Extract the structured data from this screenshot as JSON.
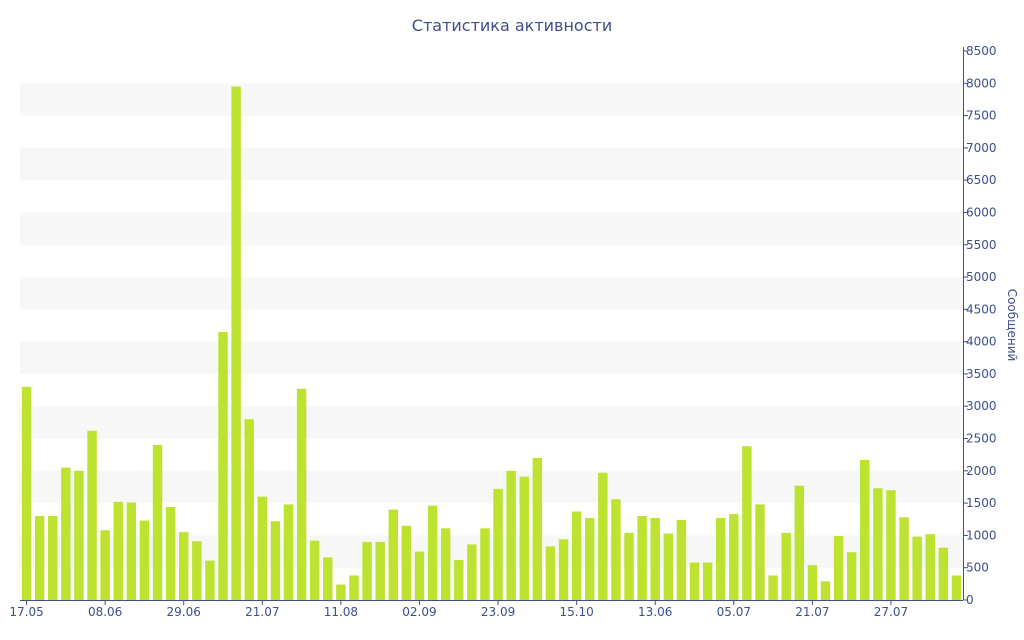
{
  "chart_data": {
    "type": "bar",
    "title": "Статистика активности",
    "ylabel": "Сообщений",
    "xlabel": "",
    "ylim": [
      0,
      8500
    ],
    "y_ticks": [
      0,
      500,
      1000,
      1500,
      2000,
      2500,
      3000,
      3500,
      4000,
      4500,
      5000,
      5500,
      6000,
      6500,
      7000,
      7500,
      8000,
      8500
    ],
    "y_axis_side": "right",
    "grid": "alternating-bands",
    "bar_color": "#bde22f",
    "axis_color": "#3e4f8c",
    "x_ticks": [
      {
        "label": "17.05",
        "index": 0
      },
      {
        "label": "08.06",
        "index": 6
      },
      {
        "label": "29.06",
        "index": 12
      },
      {
        "label": "21.07",
        "index": 18
      },
      {
        "label": "11.08",
        "index": 24
      },
      {
        "label": "02.09",
        "index": 30
      },
      {
        "label": "23.09",
        "index": 36
      },
      {
        "label": "15.10",
        "index": 42
      },
      {
        "label": "13.06",
        "index": 48
      },
      {
        "label": "05.07",
        "index": 54
      },
      {
        "label": "21.07",
        "index": 60
      },
      {
        "label": "27.07",
        "index": 66
      }
    ],
    "values": [
      3300,
      1300,
      1300,
      2050,
      2000,
      2620,
      1080,
      1520,
      1510,
      1230,
      2400,
      1440,
      1050,
      910,
      610,
      4150,
      7950,
      2800,
      1600,
      1220,
      1480,
      3270,
      920,
      660,
      240,
      380,
      900,
      900,
      1400,
      1150,
      750,
      1460,
      1110,
      620,
      860,
      1110,
      1720,
      2000,
      1910,
      2200,
      830,
      940,
      1370,
      1270,
      1970,
      1560,
      1040,
      1300,
      1270,
      1030,
      1240,
      580,
      580,
      1270,
      1330,
      2380,
      1480,
      380,
      1040,
      1770,
      540,
      290,
      990,
      740,
      2170,
      1730,
      1700,
      1280,
      980,
      1020,
      810,
      380
    ]
  }
}
